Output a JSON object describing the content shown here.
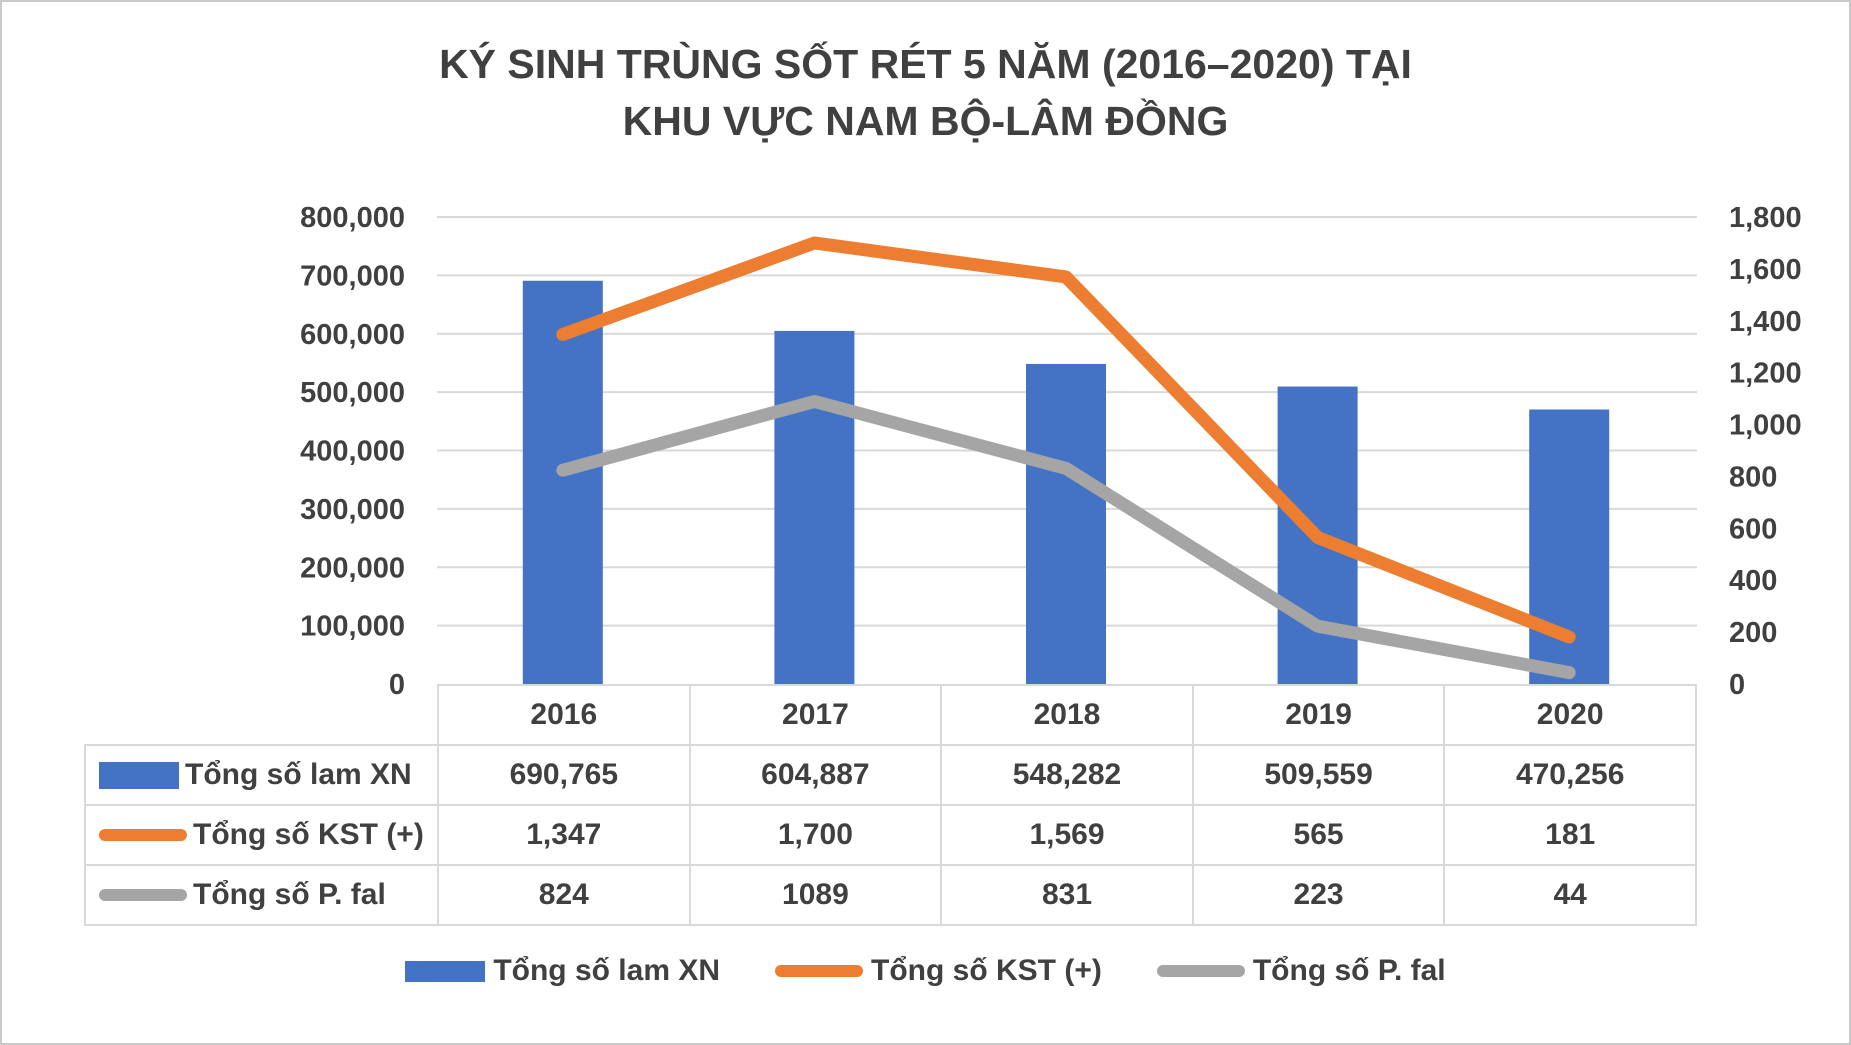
{
  "title": {
    "line1": "KÝ SINH TRÙNG SỐT RÉT 5 NĂM (2016–2020) TẠI",
    "line2": "KHU VỰC NAM BỘ-LÂM ĐỒNG"
  },
  "colors": {
    "bar_blue": "#4472C4",
    "line_orange": "#ED7D31",
    "line_gray": "#A5A5A5",
    "text": "#404040",
    "gridline": "#D9D9D9"
  },
  "chart_data": {
    "type": "combo-bar-line",
    "categories": [
      "2016",
      "2017",
      "2018",
      "2019",
      "2020"
    ],
    "series": [
      {
        "name": "Tổng số lam XN",
        "slug": "tong-so-lam-xn",
        "kind": "bar",
        "axis": "left",
        "color": "#4472C4",
        "values": [
          690765,
          604887,
          548282,
          509559,
          470256
        ],
        "display_values": [
          "690,765",
          "604,887",
          "548,282",
          "509,559",
          "470,256"
        ]
      },
      {
        "name": "Tổng số KST (+)",
        "slug": "tong-so-kst",
        "kind": "line",
        "axis": "right",
        "color": "#ED7D31",
        "values": [
          1347,
          1700,
          1569,
          565,
          181
        ],
        "display_values": [
          "1,347",
          "1,700",
          "1,569",
          "565",
          "181"
        ]
      },
      {
        "name": "Tổng số P. fal",
        "slug": "tong-so-p-fal",
        "kind": "line",
        "axis": "right",
        "color": "#A5A5A5",
        "values": [
          824,
          1089,
          831,
          223,
          44
        ],
        "display_values": [
          "824",
          "1089",
          "831",
          "223",
          "44"
        ]
      }
    ],
    "left_axis": {
      "min": 0,
      "max": 800000,
      "step": 100000,
      "tick_labels": [
        "0",
        "100,000",
        "200,000",
        "300,000",
        "400,000",
        "500,000",
        "600,000",
        "700,000",
        "800,000"
      ]
    },
    "right_axis": {
      "min": 0,
      "max": 1800,
      "step": 200,
      "tick_labels": [
        "0",
        "200",
        "400",
        "600",
        "800",
        "1,000",
        "1,200",
        "1,400",
        "1,600",
        "1,800"
      ]
    },
    "grid": true,
    "legend_position": "bottom",
    "data_table_shown": true
  }
}
